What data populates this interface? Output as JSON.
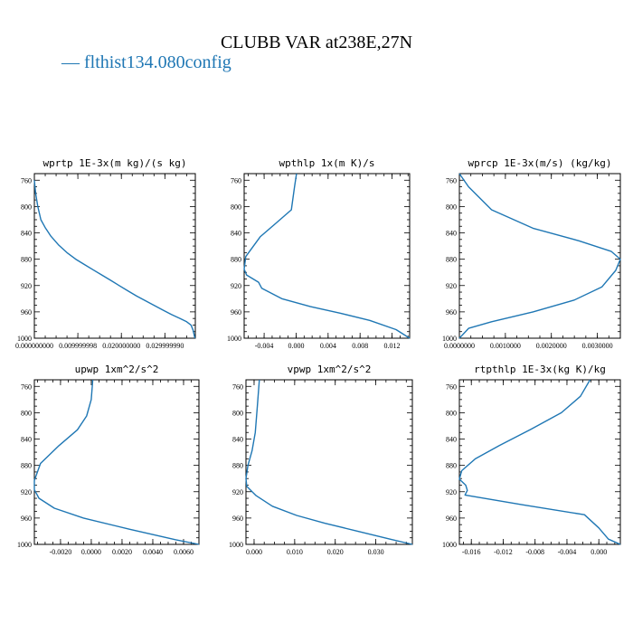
{
  "title": "CLUBB VAR at238E,27N",
  "legend": {
    "label": "— flthist134.080config",
    "color": "#1f77b4"
  },
  "chart_data": [
    {
      "type": "line",
      "title": "wprtp  1E-3x(m kg)/(s kg)",
      "xlim": [
        0.0,
        0.037
      ],
      "ylim": [
        1000,
        750
      ],
      "y_ticks": [
        760,
        800,
        840,
        880,
        920,
        960,
        1000
      ],
      "x_ticks": [
        {
          "v": 0.0,
          "label": "0.000000000"
        },
        {
          "v": 0.01,
          "label": "0.009999998"
        },
        {
          "v": 0.02,
          "label": "0.020000000"
        },
        {
          "v": 0.03,
          "label": "0.029999990"
        }
      ],
      "series": [
        {
          "x": [
            0.0,
            0.0003,
            0.0008,
            0.0015,
            0.0025,
            0.0038,
            0.0055,
            0.0075,
            0.0095,
            0.0115,
            0.0135,
            0.0155,
            0.0175,
            0.0195,
            0.0215,
            0.0235,
            0.0255,
            0.0275,
            0.0295,
            0.0315,
            0.0335,
            0.035,
            0.036,
            0.0365,
            0.0369
          ],
          "y": [
            760,
            780,
            800,
            820,
            832,
            845,
            858,
            870,
            880,
            888,
            896,
            904,
            912,
            920,
            928,
            936,
            943,
            950,
            957,
            964,
            970,
            975,
            980,
            988,
            1000
          ]
        }
      ]
    },
    {
      "type": "line",
      "title": "wpthlp  1x(m K)/s",
      "xlim": [
        -0.0065,
        0.0142
      ],
      "ylim": [
        1000,
        750
      ],
      "y_ticks": [
        760,
        800,
        840,
        880,
        920,
        960,
        1000
      ],
      "x_ticks": [
        {
          "v": -0.004,
          "label": "-0.004"
        },
        {
          "v": 0.0,
          "label": "0.000"
        },
        {
          "v": 0.004,
          "label": "0.004"
        },
        {
          "v": 0.008,
          "label": "0.008"
        },
        {
          "v": 0.012,
          "label": "0.012"
        }
      ],
      "series": [
        {
          "x": [
            5e-05,
            -0.0002,
            -0.0006,
            -0.0025,
            -0.0045,
            -0.0063,
            -0.0065,
            -0.0062,
            -0.0047,
            -0.0043,
            -0.0018,
            0.0018,
            0.0055,
            0.0092,
            0.0125,
            0.0142
          ],
          "y": [
            750,
            770,
            805,
            825,
            846,
            876,
            895,
            904,
            915,
            924,
            940,
            952,
            962,
            973,
            987,
            1000
          ]
        }
      ]
    },
    {
      "type": "line",
      "title": "wprcp  1E-3x(m/s) (kg/kg)",
      "xlim": [
        0.0,
        0.0035
      ],
      "ylim": [
        1000,
        750
      ],
      "y_ticks": [
        760,
        800,
        840,
        880,
        920,
        960,
        1000
      ],
      "x_ticks": [
        {
          "v": 0.0,
          "label": "0.0000000"
        },
        {
          "v": 0.001,
          "label": "0.0010000"
        },
        {
          "v": 0.002,
          "label": "0.0020000"
        },
        {
          "v": 0.003,
          "label": "0.0030000"
        }
      ],
      "series": [
        {
          "x": [
            0.0,
            0.0002,
            0.0007,
            0.0016,
            0.0026,
            0.0033,
            0.0035,
            0.0034,
            0.0031,
            0.0025,
            0.0016,
            0.0007,
            0.0002,
            0.0
          ],
          "y": [
            750,
            770,
            805,
            833,
            852,
            868,
            880,
            897,
            922,
            942,
            960,
            975,
            985,
            1000
          ]
        }
      ]
    },
    {
      "type": "line",
      "title": "upwp  1xm^2/s^2",
      "xlim": [
        -0.0037,
        0.007
      ],
      "ylim": [
        1000,
        750
      ],
      "y_ticks": [
        760,
        800,
        840,
        880,
        920,
        960,
        1000
      ],
      "x_ticks": [
        {
          "v": -0.002,
          "label": "-0.0020"
        },
        {
          "v": 0.0,
          "label": "0.0000"
        },
        {
          "v": 0.002,
          "label": "0.0020"
        },
        {
          "v": 0.004,
          "label": "0.0040"
        },
        {
          "v": 0.006,
          "label": "0.0060"
        }
      ],
      "series": [
        {
          "x": [
            0.0001,
            0.0,
            -0.0003,
            -0.0009,
            -0.0021,
            -0.0033,
            -0.0037,
            -0.0037,
            -0.0034,
            -0.0024,
            -0.0005,
            0.0025,
            0.0055,
            0.007
          ],
          "y": [
            750,
            780,
            805,
            826,
            850,
            877,
            903,
            917,
            930,
            945,
            960,
            977,
            993,
            1000
          ]
        }
      ]
    },
    {
      "type": "line",
      "title": "vpwp  1xm^2/s^2",
      "xlim": [
        -0.002,
        0.039
      ],
      "ylim": [
        1000,
        750
      ],
      "y_ticks": [
        760,
        800,
        840,
        880,
        920,
        960,
        1000
      ],
      "x_ticks": [
        {
          "v": 0.0,
          "label": "0.000"
        },
        {
          "v": 0.01,
          "label": "0.010"
        },
        {
          "v": 0.02,
          "label": "0.020"
        },
        {
          "v": 0.03,
          "label": "0.030"
        }
      ],
      "series": [
        {
          "x": [
            0.0013,
            0.0008,
            0.0003,
            -0.0005,
            -0.0015,
            -0.002,
            -0.0018,
            0.0005,
            0.0045,
            0.0105,
            0.0175,
            0.0255,
            0.0335,
            0.039
          ],
          "y": [
            750,
            790,
            830,
            858,
            880,
            900,
            912,
            926,
            942,
            956,
            968,
            980,
            992,
            1000
          ]
        }
      ]
    },
    {
      "type": "line",
      "title": "rtpthlp  1E-3x(kg K)/kg",
      "xlim": [
        -0.0175,
        0.0027
      ],
      "ylim": [
        1000,
        750
      ],
      "y_ticks": [
        760,
        800,
        840,
        880,
        920,
        960,
        1000
      ],
      "x_ticks": [
        {
          "v": -0.016,
          "label": "-0.016"
        },
        {
          "v": -0.012,
          "label": "-0.012"
        },
        {
          "v": -0.008,
          "label": "-0.008"
        },
        {
          "v": -0.004,
          "label": "-0.004"
        },
        {
          "v": 0.0,
          "label": "0.000"
        }
      ],
      "series": [
        {
          "x": [
            -0.0011,
            -0.0023,
            -0.0047,
            -0.0085,
            -0.0125,
            -0.0155,
            -0.0172,
            -0.0175,
            -0.0167,
            -0.0165,
            -0.0168,
            -0.0095,
            -0.0018,
            0.0,
            0.0012,
            0.0027
          ],
          "y": [
            750,
            775,
            800,
            825,
            850,
            870,
            888,
            901,
            910,
            918,
            925,
            940,
            955,
            975,
            992,
            1000
          ]
        }
      ]
    }
  ]
}
